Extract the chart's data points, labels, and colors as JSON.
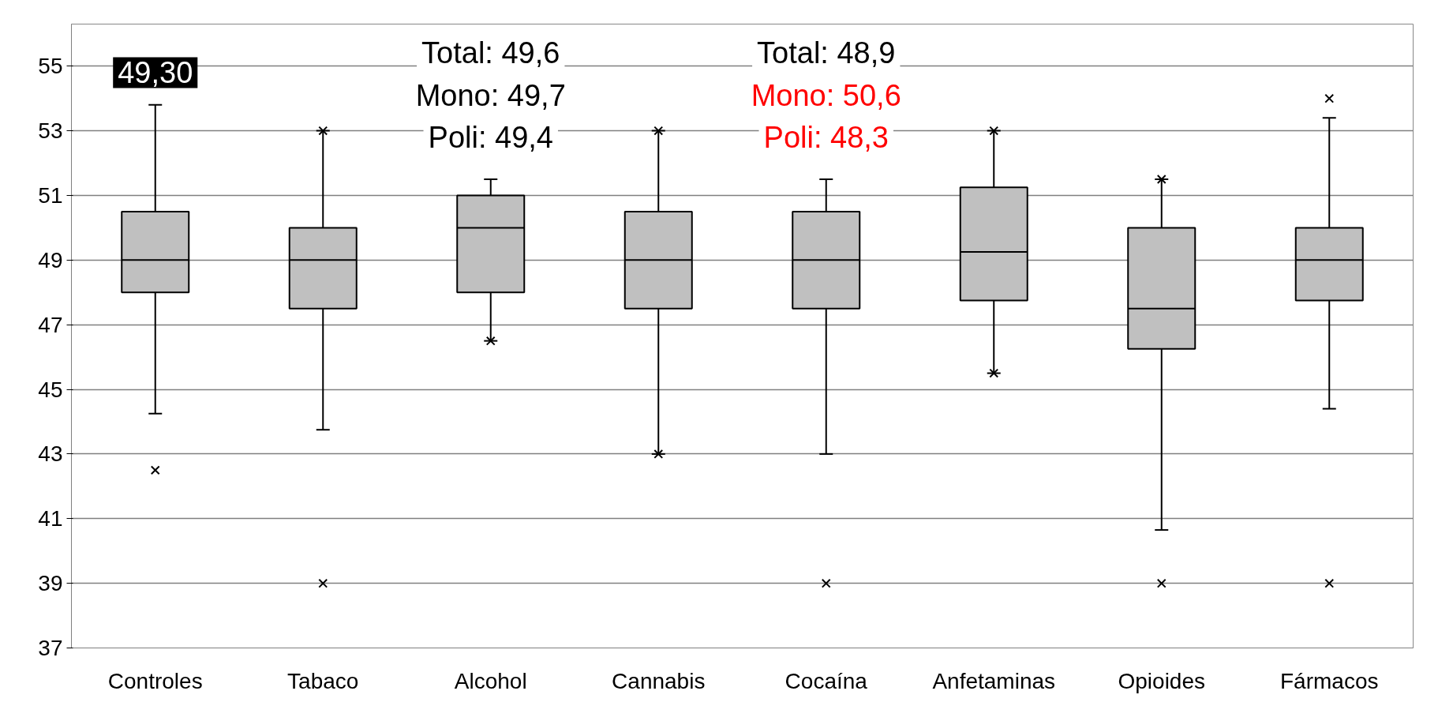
{
  "chart_data": {
    "type": "box",
    "categories": [
      "Controles",
      "Tabaco",
      "Alcohol",
      "Cannabis",
      "Cocaína",
      "Anfetaminas",
      "Opioides",
      "Fármacos"
    ],
    "boxes": [
      {
        "low": 44.25,
        "q1": 48,
        "median": 49,
        "q3": 50.5,
        "high": 53.8,
        "outliers": [
          42.5
        ]
      },
      {
        "low": 43.75,
        "q1": 47.5,
        "median": 49,
        "q3": 50,
        "high": 53,
        "outliers": [
          53,
          39
        ]
      },
      {
        "low": 46.5,
        "q1": 48,
        "median": 50,
        "q3": 51,
        "high": 51.5,
        "outliers": [
          46.5
        ]
      },
      {
        "low": 43,
        "q1": 47.5,
        "median": 49,
        "q3": 50.5,
        "high": 53,
        "outliers": [
          43,
          53
        ]
      },
      {
        "low": 43,
        "q1": 47.5,
        "median": 49,
        "q3": 50.5,
        "high": 51.5,
        "outliers": [
          39
        ]
      },
      {
        "low": 45.5,
        "q1": 47.75,
        "median": 49.25,
        "q3": 51.25,
        "high": 53,
        "outliers": [
          45.5,
          53
        ]
      },
      {
        "low": 40.65,
        "q1": 46.25,
        "median": 47.5,
        "q3": 50,
        "high": 51.5,
        "outliers": [
          51.5,
          39
        ]
      },
      {
        "low": 44.4,
        "q1": 47.75,
        "median": 49,
        "q3": 50,
        "high": 53.4,
        "outliers": [
          54,
          39
        ]
      }
    ],
    "color": "#c0c0c0",
    "ylim": [
      37,
      56.3
    ],
    "yticks": [
      37,
      39,
      41,
      43,
      45,
      47,
      49,
      51,
      53,
      55
    ],
    "grid": "y",
    "annotations": [
      "49,30",
      "Total: 49,6",
      "Mono: 49,7",
      "Poli: 49,4",
      "Total: 48,9",
      "Mono: 50,6",
      "Poli: 48,3"
    ]
  }
}
